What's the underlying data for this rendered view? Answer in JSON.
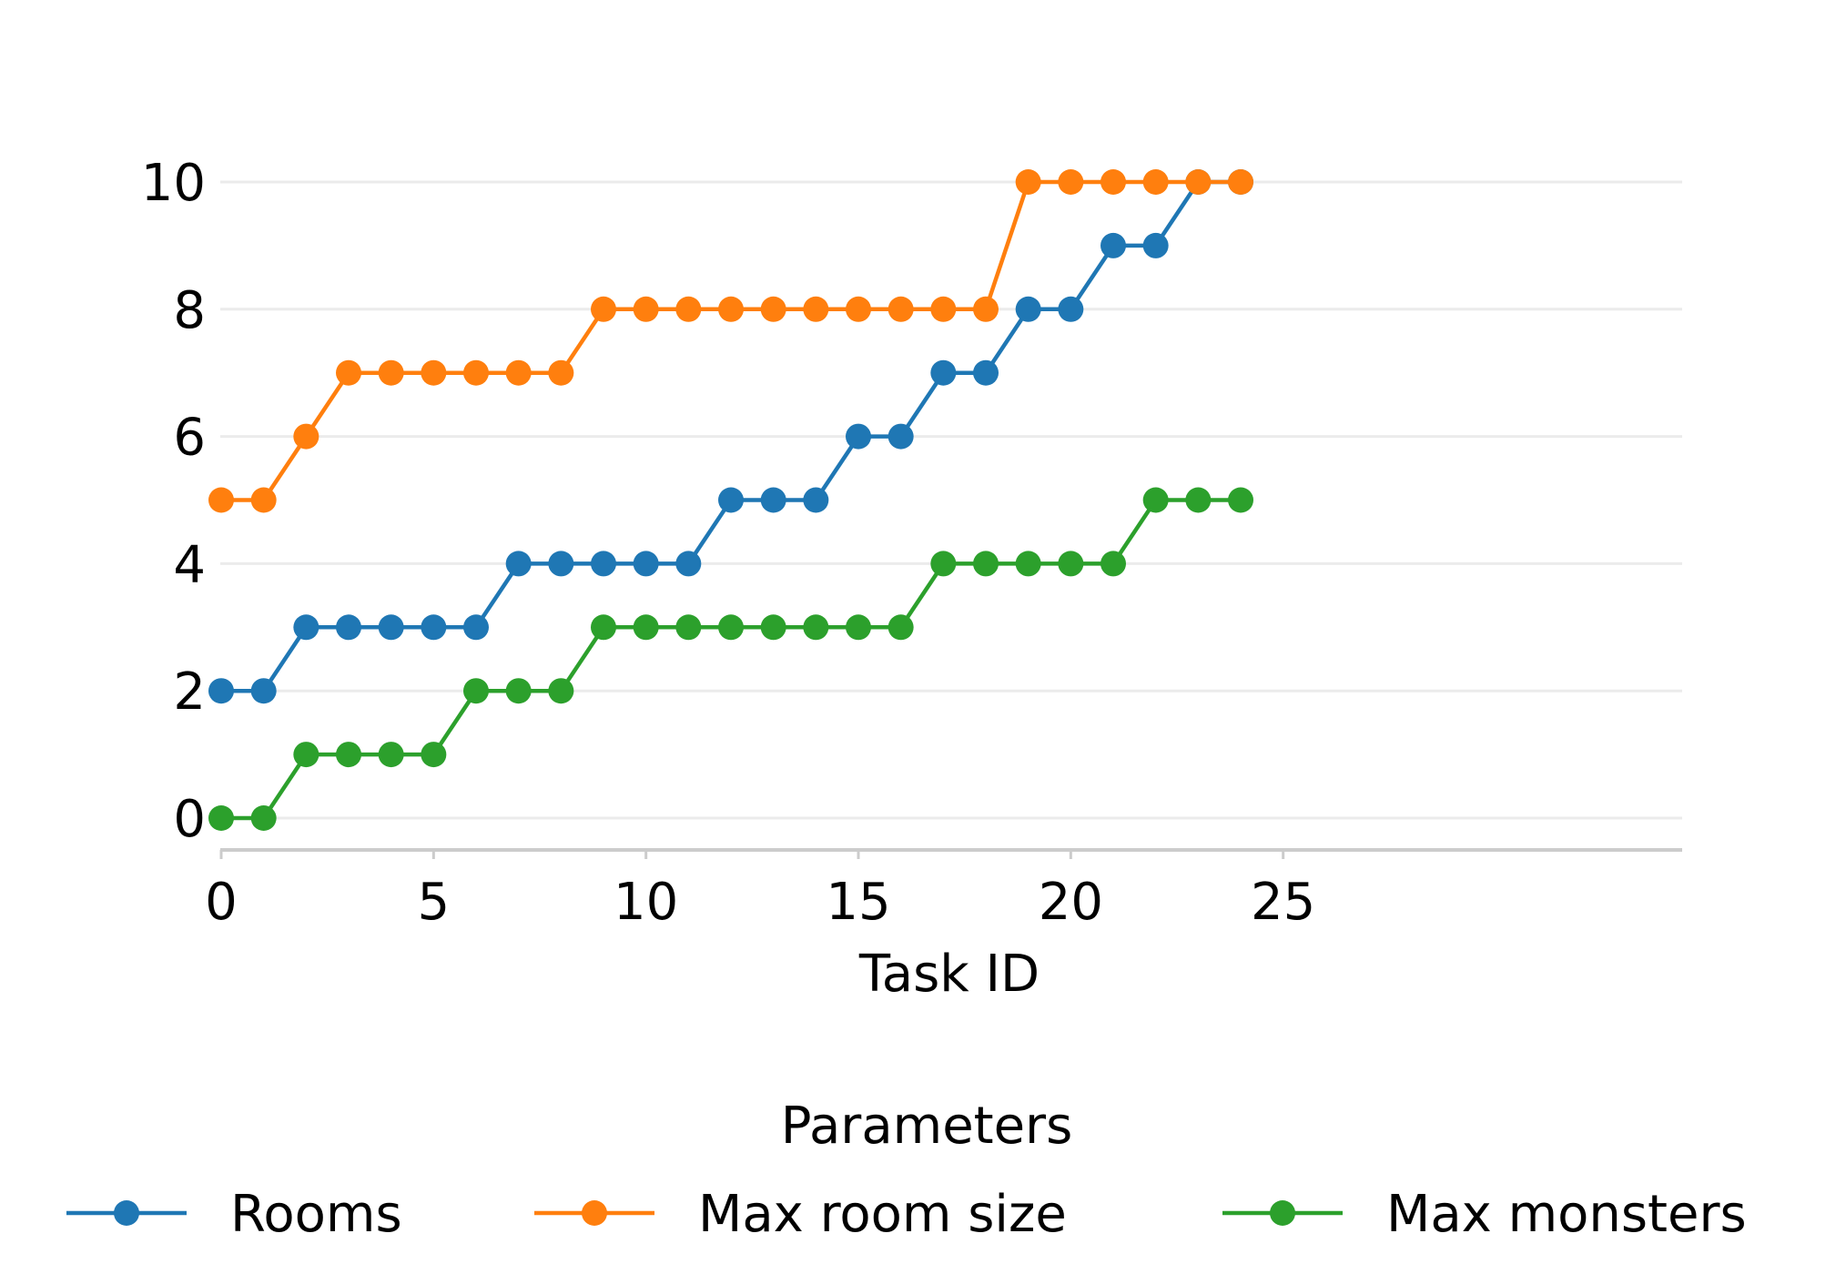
{
  "chart_data": {
    "type": "line",
    "title": "",
    "xlabel": "Task ID",
    "ylabel": "",
    "x": [
      0,
      1,
      2,
      3,
      4,
      5,
      6,
      7,
      8,
      9,
      10,
      11,
      12,
      13,
      14,
      15,
      16,
      17,
      18,
      19,
      20,
      21,
      22,
      23,
      24
    ],
    "xlim": [
      -1.2,
      25.2
    ],
    "ylim": [
      -0.5,
      10.5
    ],
    "xticks": [
      0,
      5,
      10,
      15,
      20,
      25
    ],
    "xtick_labels": [
      "0",
      "5",
      "10",
      "15",
      "20",
      "25"
    ],
    "yticks": [
      0,
      2,
      4,
      6,
      8,
      10
    ],
    "ytick_labels": [
      "0",
      "2",
      "4",
      "6",
      "8",
      "10"
    ],
    "grid": "horizontal",
    "legend": {
      "title": "Parameters",
      "placement": "bottom-center"
    },
    "series": [
      {
        "name": "Rooms",
        "color": "#1f77b4",
        "values": [
          2,
          2,
          3,
          3,
          3,
          3,
          3,
          4,
          4,
          4,
          4,
          4,
          5,
          5,
          5,
          6,
          6,
          7,
          7,
          8,
          8,
          9,
          9,
          10,
          10
        ]
      },
      {
        "name": "Max room size",
        "color": "#ff7f0e",
        "values": [
          5,
          5,
          6,
          7,
          7,
          7,
          7,
          7,
          7,
          8,
          8,
          8,
          8,
          8,
          8,
          8,
          8,
          8,
          8,
          10,
          10,
          10,
          10,
          10,
          10
        ]
      },
      {
        "name": "Max monsters",
        "color": "#2ca02c",
        "values": [
          0,
          0,
          1,
          1,
          1,
          1,
          2,
          2,
          2,
          3,
          3,
          3,
          3,
          3,
          3,
          3,
          3,
          4,
          4,
          4,
          4,
          4,
          5,
          5,
          5
        ]
      }
    ]
  }
}
